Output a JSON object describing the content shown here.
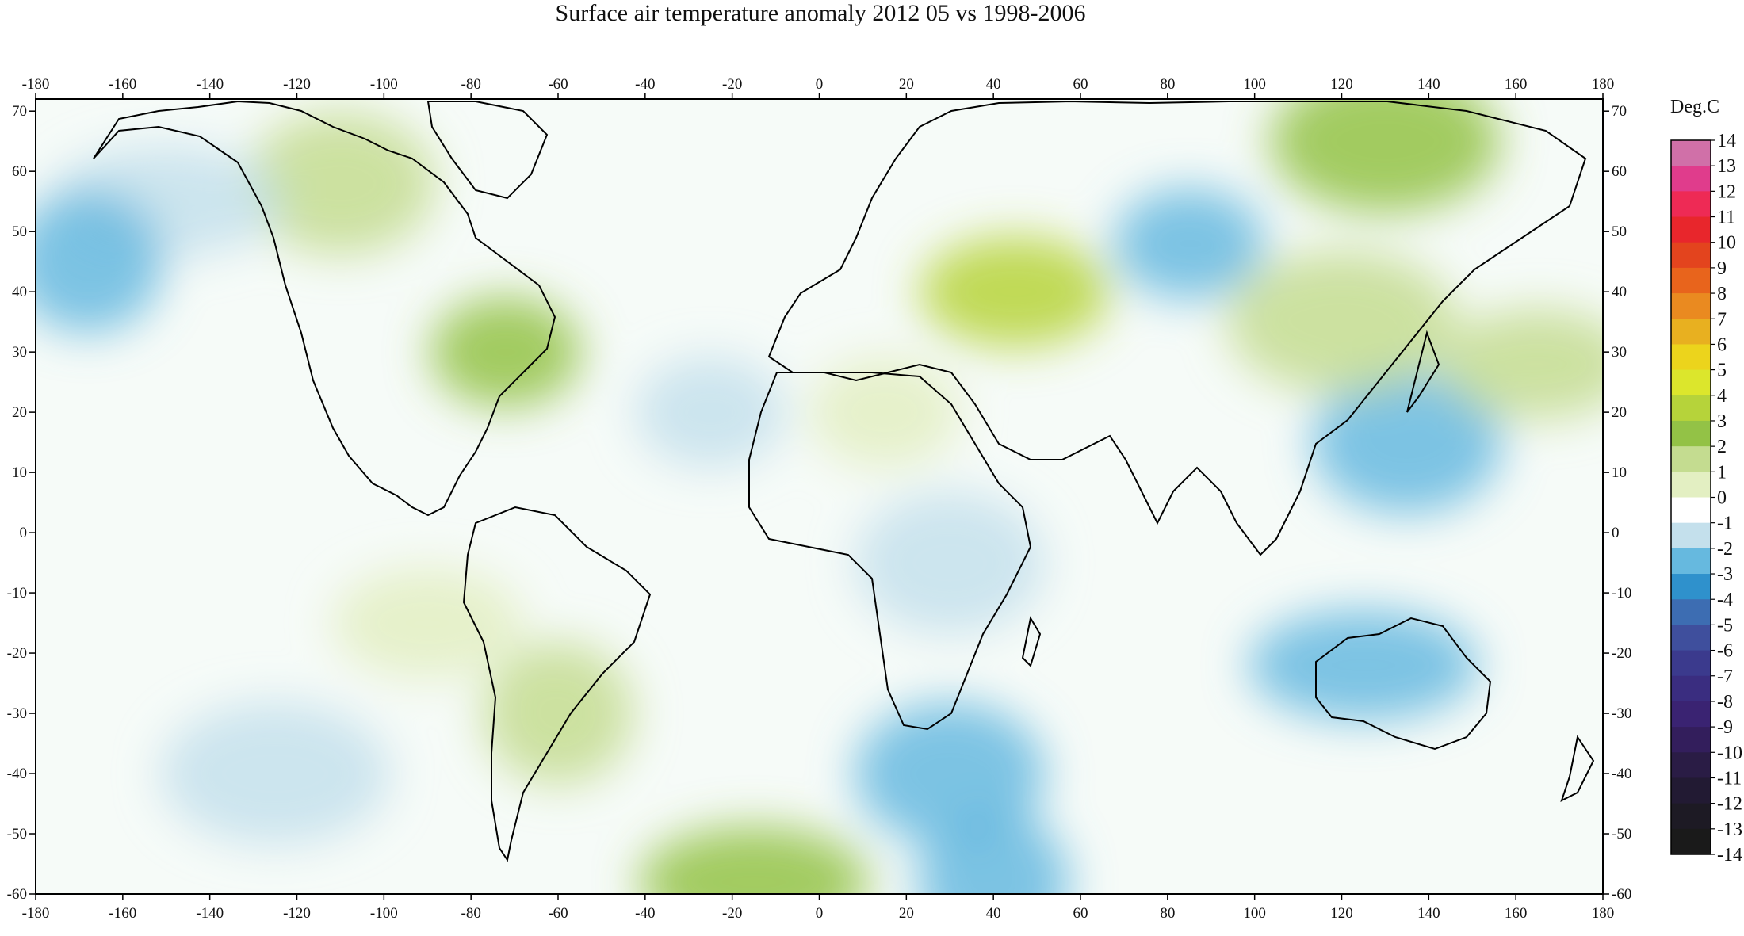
{
  "title": "Surface air temperature anomaly 2012 05 vs 1998-2006",
  "colorbar": {
    "unit": "Deg.C",
    "labels": [
      "14",
      "13",
      "12",
      "11",
      "10",
      "9",
      "8",
      "7",
      "6",
      "5",
      "4",
      "3",
      "2",
      "1",
      "0",
      "-1",
      "-2",
      "-3",
      "-4",
      "-5",
      "-6",
      "-7",
      "-8",
      "-9",
      "-10",
      "-11",
      "-12",
      "-13",
      "-14"
    ],
    "colors": [
      "#d070a8",
      "#e03c8c",
      "#ee2a55",
      "#e8262c",
      "#e3441e",
      "#e8641c",
      "#ea8a20",
      "#e8b020",
      "#ecd41c",
      "#dce62c",
      "#b6d33a",
      "#93c246",
      "#c4dc90",
      "#e3efc2",
      "#ffffff",
      "#c4e0ec",
      "#66b9df",
      "#2f91cc",
      "#3d6db2",
      "#3f4f9d",
      "#3b3a8d",
      "#3a2d80",
      "#3a2372",
      "#331e5c",
      "#2a1c45",
      "#221a33",
      "#1d1a24",
      "#1a1a1a"
    ]
  },
  "axes": {
    "longitude_ticks": [
      -180,
      -160,
      -140,
      -120,
      -100,
      -80,
      -60,
      -40,
      -20,
      0,
      20,
      40,
      60,
      80,
      100,
      120,
      140,
      160,
      180
    ],
    "latitude_ticks": [
      70,
      60,
      50,
      40,
      30,
      20,
      10,
      0,
      -10,
      -20,
      -30,
      -40,
      -50,
      -60
    ],
    "lon_range": [
      -180,
      180
    ],
    "lat_range": [
      -60,
      72
    ]
  },
  "map_regions": [
    {
      "lon": -72,
      "lat": 30,
      "anomaly": 2.5
    },
    {
      "lon": -110,
      "lat": 58,
      "anomaly": 1.5
    },
    {
      "lon": -150,
      "lat": 55,
      "anomaly": -1.5
    },
    {
      "lon": -168,
      "lat": 45,
      "anomaly": -2
    },
    {
      "lon": 45,
      "lat": 40,
      "anomaly": 3.5
    },
    {
      "lon": 130,
      "lat": 65,
      "anomaly": 3
    },
    {
      "lon": 85,
      "lat": 48,
      "anomaly": -2
    },
    {
      "lon": 135,
      "lat": 15,
      "anomaly": -2
    },
    {
      "lon": 125,
      "lat": -22,
      "anomaly": -2
    },
    {
      "lon": -60,
      "lat": -30,
      "anomaly": 2
    },
    {
      "lon": -90,
      "lat": -15,
      "anomaly": 1
    },
    {
      "lon": -125,
      "lat": -40,
      "anomaly": -1.5
    },
    {
      "lon": -25,
      "lat": 20,
      "anomaly": -1
    },
    {
      "lon": 30,
      "lat": -40,
      "anomaly": -2
    },
    {
      "lon": -15,
      "lat": -58,
      "anomaly": 2.5
    },
    {
      "lon": 40,
      "lat": -58,
      "anomaly": -2
    },
    {
      "lon": 165,
      "lat": 28,
      "anomaly": 2
    },
    {
      "lon": 120,
      "lat": 35,
      "anomaly": 1.5
    },
    {
      "lon": 15,
      "lat": 20,
      "anomaly": 1
    },
    {
      "lon": 30,
      "lat": -5,
      "anomaly": -1.5
    }
  ]
}
